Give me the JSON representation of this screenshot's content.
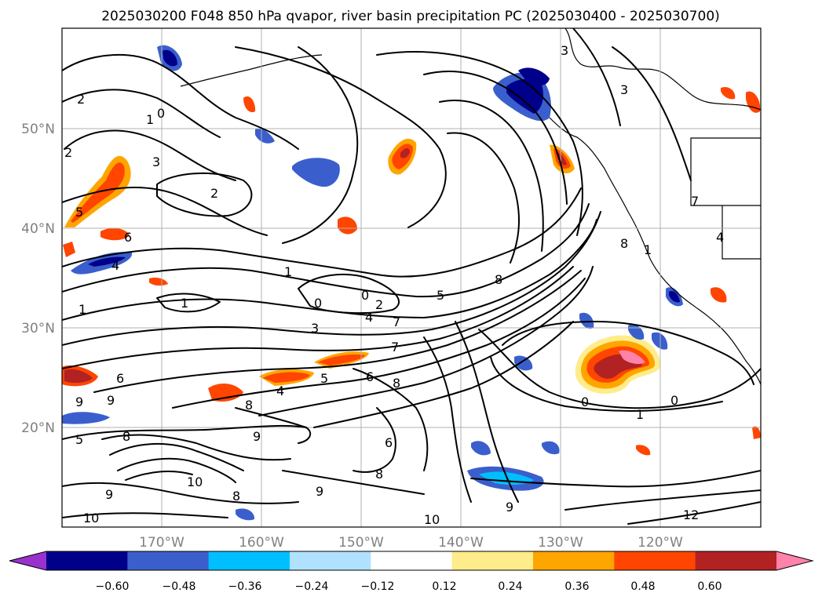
{
  "title": "2025030200 F048 850 hPa qvapor, river basin precipitation PC (2025030400 - 2025030700)",
  "map": {
    "lat_labels": [
      "50°N",
      "40°N",
      "30°N",
      "20°N"
    ],
    "lon_labels": [
      "170°W",
      "160°W",
      "150°W",
      "140°W",
      "130°W",
      "120°W"
    ],
    "contour_labels": [
      "2",
      "1",
      "0",
      "2",
      "3",
      "2",
      "5",
      "6",
      "4",
      "1",
      "1",
      "0",
      "0",
      "2",
      "4",
      "3",
      "1",
      "7",
      "5",
      "8",
      "7",
      "6",
      "6",
      "5",
      "4",
      "8",
      "9",
      "9",
      "8",
      "5",
      "8",
      "9",
      "10",
      "9",
      "8",
      "6",
      "8",
      "9",
      "10",
      "9",
      "10",
      "12",
      "0",
      "1",
      "0",
      "3",
      "8",
      "4",
      "3",
      "7",
      "1"
    ]
  },
  "colorbar": {
    "ticks": [
      "−0.60",
      "−0.48",
      "−0.36",
      "−0.24",
      "−0.12",
      "0.12",
      "0.24",
      "0.36",
      "0.48",
      "0.60"
    ],
    "colors": [
      "#9932CC",
      "#00008B",
      "#3A5FCD",
      "#00BFFF",
      "#B0E2FF",
      "#FFFFFF",
      "#FFEC8B",
      "#FFA500",
      "#FF4500",
      "#B22222",
      "#FF82AB"
    ]
  }
}
